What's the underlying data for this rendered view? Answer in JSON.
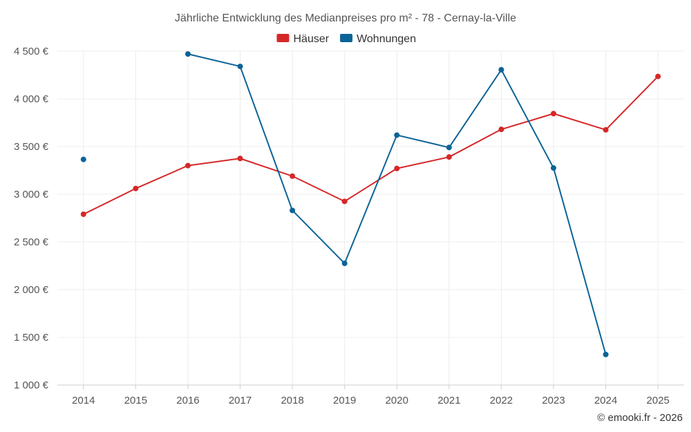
{
  "chart_data": {
    "type": "line",
    "title": "Jährliche Entwicklung des Medianpreises pro m² - 78 - Cernay-la-Ville",
    "categories": [
      "2014",
      "2015",
      "2016",
      "2017",
      "2018",
      "2019",
      "2020",
      "2021",
      "2022",
      "2023",
      "2024",
      "2025"
    ],
    "series": [
      {
        "name": "Häuser",
        "color": "#d62728",
        "values": [
          2790,
          3060,
          3300,
          3375,
          3190,
          2925,
          3270,
          3390,
          3680,
          3845,
          3675,
          4235
        ]
      },
      {
        "name": "Wohnungen",
        "color": "#0b6396",
        "values": [
          3365,
          null,
          4470,
          4340,
          2830,
          2275,
          3620,
          3490,
          4305,
          3275,
          1320,
          null
        ]
      }
    ],
    "ylim": [
      1000,
      4500
    ],
    "yticks": [
      1000,
      1500,
      2000,
      2500,
      3000,
      3500,
      4000,
      4500
    ],
    "ytick_labels": [
      "1 000 €",
      "1 500 €",
      "2 000 €",
      "2 500 €",
      "3 000 €",
      "3 500 €",
      "4 000 €",
      "4 500 €"
    ],
    "xlabel": "",
    "ylabel": "",
    "grid": true,
    "legend": "top-center"
  },
  "credit": "© emooki.fr - 2026"
}
